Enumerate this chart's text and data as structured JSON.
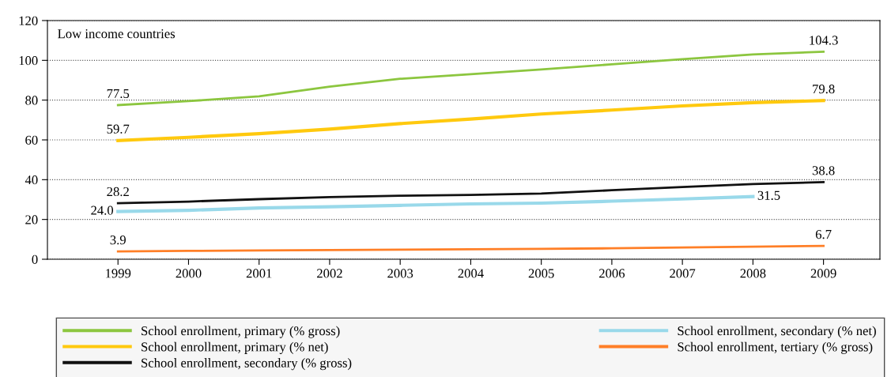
{
  "chart_data": {
    "type": "line",
    "title": "Low income countries",
    "x": [
      1999,
      2000,
      2001,
      2002,
      2003,
      2004,
      2005,
      2006,
      2007,
      2008,
      2009
    ],
    "xlim": [
      1998,
      2009.8
    ],
    "xticks": [
      1999,
      2000,
      2001,
      2002,
      2003,
      2004,
      2005,
      2006,
      2007,
      2008,
      2009
    ],
    "ylim": [
      0,
      120
    ],
    "yticks": [
      0,
      20,
      40,
      60,
      80,
      100,
      120
    ],
    "grid": "y",
    "legend": "bottom",
    "marker": "none",
    "line_style": "solid",
    "series": [
      {
        "name": "School enrollment, primary (% gross)",
        "color": "#8cc63f",
        "values": [
          77.5,
          79.5,
          81.9,
          86.8,
          90.7,
          93,
          95.4,
          98,
          100.6,
          103,
          104.3
        ],
        "value_labels": [
          "77.5",
          null,
          null,
          null,
          null,
          null,
          null,
          null,
          null,
          null,
          "104.3"
        ]
      },
      {
        "name": "School enrollment, primary (% net)",
        "color": "#ffc90e",
        "values": [
          59.7,
          61.3,
          63.1,
          65.4,
          68.2,
          70.5,
          73,
          75,
          77.1,
          78.7,
          79.8
        ],
        "value_labels": [
          "59.7",
          null,
          null,
          null,
          null,
          null,
          null,
          null,
          null,
          null,
          "79.8"
        ]
      },
      {
        "name": "School enrollment, secondary (% gross)",
        "color": "#111111",
        "values": [
          28.2,
          29,
          30.2,
          31.2,
          31.9,
          32.3,
          33,
          34.7,
          36.3,
          37.8,
          38.8
        ],
        "value_labels": [
          "28.2",
          null,
          null,
          null,
          null,
          null,
          null,
          null,
          null,
          null,
          "38.8"
        ]
      },
      {
        "name": "School enrollment, secondary (% net)",
        "color": "#99d9ea",
        "values": [
          24.0,
          24.6,
          25.8,
          26.4,
          27.1,
          27.8,
          28.2,
          29.2,
          30.3,
          31.5,
          null
        ],
        "value_labels": [
          "24.0",
          null,
          null,
          null,
          null,
          null,
          null,
          null,
          null,
          "31.5",
          null
        ]
      },
      {
        "name": "School enrollment, tertiary (% gross)",
        "color": "#ff7f27",
        "values": [
          3.9,
          4.2,
          4.4,
          4.6,
          4.8,
          5.0,
          5.2,
          5.5,
          5.9,
          6.3,
          6.7
        ],
        "value_labels": [
          "3.9",
          null,
          null,
          null,
          null,
          null,
          null,
          null,
          null,
          null,
          "6.7"
        ]
      }
    ]
  }
}
